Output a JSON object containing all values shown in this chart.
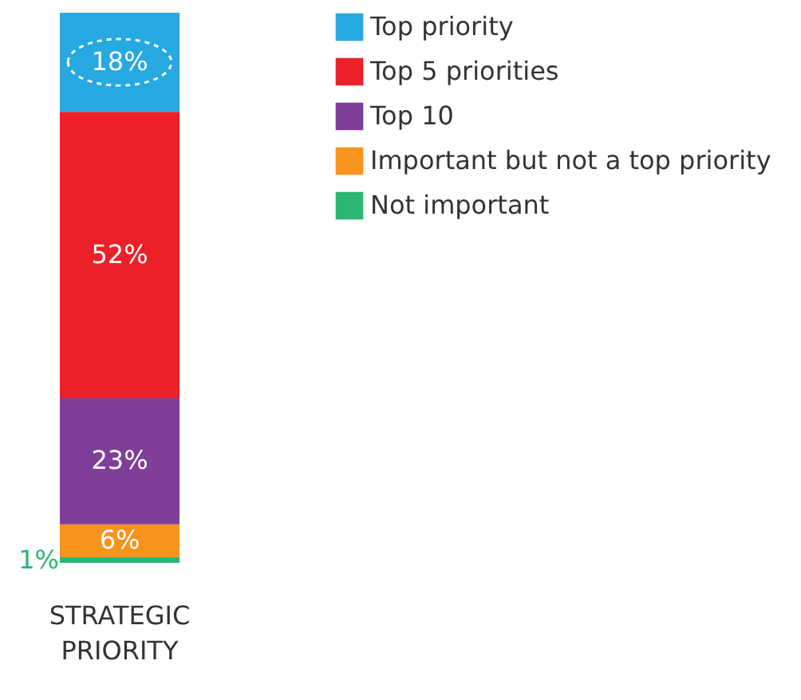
{
  "chart_data": {
    "type": "bar",
    "stacked": true,
    "categories": [
      "STRATEGIC PRIORITY"
    ],
    "legend": "right",
    "grid": false,
    "series": [
      {
        "name": "Not important",
        "color": "#2bb673",
        "values": [
          1
        ],
        "value_labels": [
          "1%"
        ]
      },
      {
        "name": "Important but not a top priority",
        "color": "#f7941d",
        "values": [
          6
        ],
        "value_labels": [
          "6%"
        ]
      },
      {
        "name": "Top 10",
        "color": "#803f97",
        "values": [
          23
        ],
        "value_labels": [
          "23%"
        ]
      },
      {
        "name": "Top 5 priorities",
        "color": "#ec2029",
        "values": [
          52
        ],
        "value_labels": [
          "52%"
        ]
      },
      {
        "name": "Top priority",
        "color": "#25a9e0",
        "values": [
          18
        ],
        "value_labels": [
          "18%"
        ]
      }
    ]
  }
}
